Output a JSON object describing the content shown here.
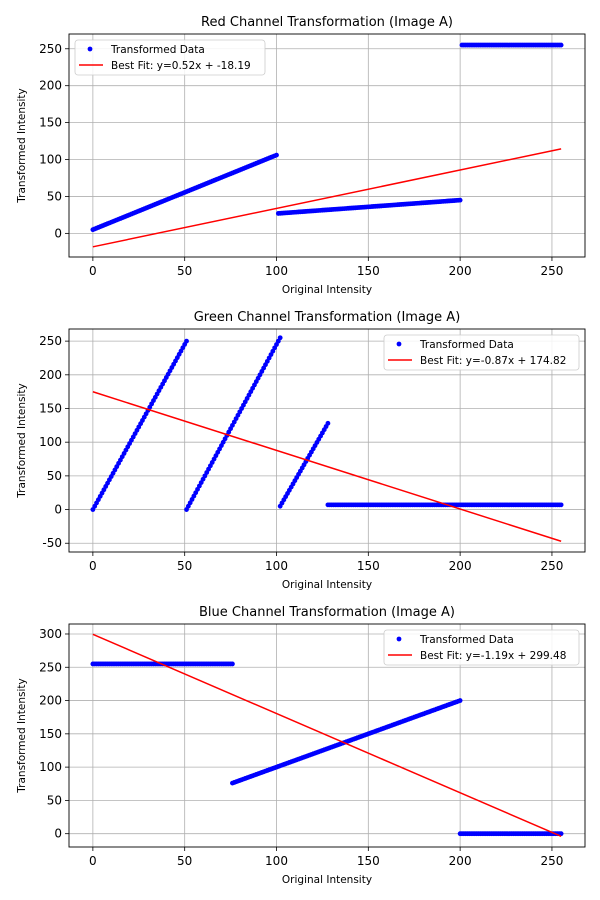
{
  "chart_data": [
    {
      "type": "scatter",
      "title": "Red Channel Transformation (Image A)",
      "xlabel": "Original Intensity",
      "ylabel": "Transformed Intensity",
      "xlim": [
        -13,
        268
      ],
      "ylim": [
        -32,
        270
      ],
      "xticks": [
        0,
        50,
        100,
        150,
        200,
        250
      ],
      "yticks": [
        0,
        50,
        100,
        150,
        200,
        250
      ],
      "grid": true,
      "legend_position": "top-left",
      "point_color": "#0000ff",
      "fit_color": "#ff0000",
      "series": [
        {
          "name": "Transformed Data",
          "segments": [
            {
              "x_start": 0,
              "x_end": 100,
              "y_start": 5,
              "y_end": 106
            },
            {
              "x_start": 101,
              "x_end": 200,
              "y_start": 27,
              "y_end": 45
            },
            {
              "x_start": 201,
              "x_end": 255,
              "y_start": 255,
              "y_end": 255
            }
          ]
        },
        {
          "name": "Best Fit: y=0.52x + -18.19",
          "slope": 0.52,
          "intercept": -18.19,
          "x_range": [
            0,
            255
          ]
        }
      ]
    },
    {
      "type": "scatter",
      "title": "Green Channel Transformation (Image A)",
      "xlabel": "Original Intensity",
      "ylabel": "Transformed Intensity",
      "xlim": [
        -13,
        268
      ],
      "ylim": [
        -63,
        268
      ],
      "xticks": [
        0,
        50,
        100,
        150,
        200,
        250
      ],
      "yticks": [
        -50,
        0,
        50,
        100,
        150,
        200,
        250
      ],
      "grid": true,
      "legend_position": "top-right",
      "point_color": "#0000ff",
      "fit_color": "#ff0000",
      "series": [
        {
          "name": "Transformed Data",
          "segments": [
            {
              "x_start": 0,
              "x_end": 51,
              "y_start": 0,
              "y_end": 250
            },
            {
              "x_start": 51,
              "x_end": 102,
              "y_start": 0,
              "y_end": 255
            },
            {
              "x_start": 102,
              "x_end": 128,
              "y_start": 5,
              "y_end": 128
            },
            {
              "x_start": 128,
              "x_end": 255,
              "y_start": 7,
              "y_end": 7
            }
          ]
        },
        {
          "name": "Best Fit: y=-0.87x + 174.82",
          "slope": -0.87,
          "intercept": 174.82,
          "x_range": [
            0,
            255
          ]
        }
      ]
    },
    {
      "type": "scatter",
      "title": "Blue Channel Transformation (Image A)",
      "xlabel": "Original Intensity",
      "ylabel": "Transformed Intensity",
      "xlim": [
        -13,
        268
      ],
      "ylim": [
        -20,
        315
      ],
      "xticks": [
        0,
        50,
        100,
        150,
        200,
        250
      ],
      "yticks": [
        0,
        50,
        100,
        150,
        200,
        250,
        300
      ],
      "grid": true,
      "legend_position": "top-right",
      "point_color": "#0000ff",
      "fit_color": "#ff0000",
      "series": [
        {
          "name": "Transformed Data",
          "segments": [
            {
              "x_start": 0,
              "x_end": 76,
              "y_start": 255,
              "y_end": 255
            },
            {
              "x_start": 76,
              "x_end": 200,
              "y_start": 76,
              "y_end": 200
            },
            {
              "x_start": 200,
              "x_end": 255,
              "y_start": 0,
              "y_end": 0
            }
          ]
        },
        {
          "name": "Best Fit: y=-1.19x + 299.48",
          "slope": -1.19,
          "intercept": 299.48,
          "x_range": [
            0,
            255
          ]
        }
      ]
    }
  ]
}
